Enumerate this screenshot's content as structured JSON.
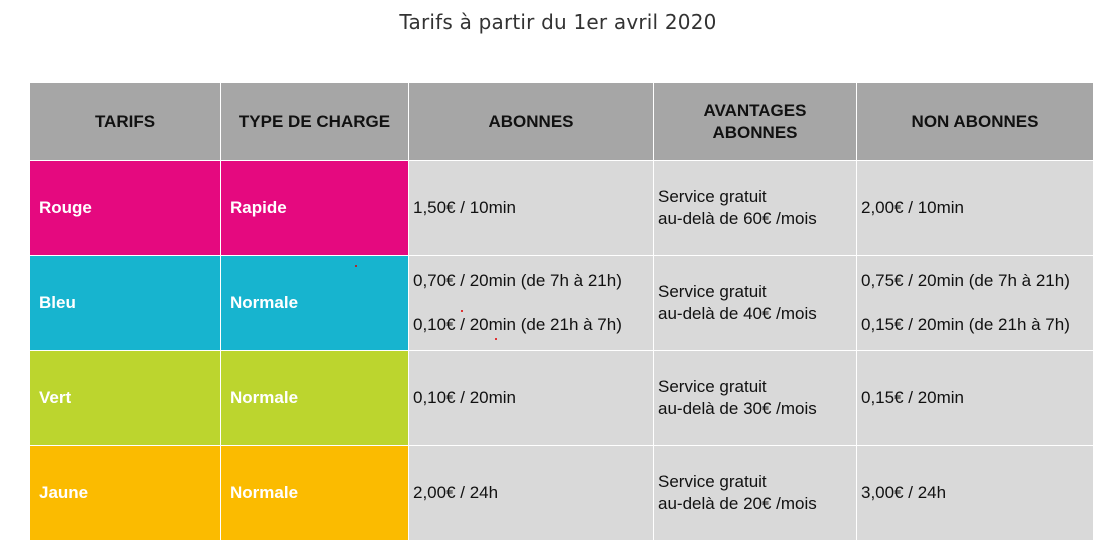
{
  "title": "Tarifs à partir du 1er avril 2020",
  "colors": {
    "header_bg": "#a6a6a6",
    "cell_bg": "#d9d9d9",
    "rouge": "#e5097f",
    "bleu": "#17b4cf",
    "vert": "#bcd52e",
    "jaune": "#fbbb00"
  },
  "headers": {
    "tarifs": "TARIFS",
    "type_de_charge": "TYPE DE CHARGE",
    "abonnes": "ABONNES",
    "avantages_line1": "AVANTAGES",
    "avantages_line2": "ABONNES",
    "non_abonnes": "NON ABONNES"
  },
  "rows": [
    {
      "tarif": "Rouge",
      "type": "Rapide",
      "abonnes": [
        "1,50€ / 10min"
      ],
      "avantages": [
        "Service gratuit",
        "au-delà de 60€ /mois"
      ],
      "non_abonnes": [
        "2,00€ / 10min"
      ]
    },
    {
      "tarif": "Bleu",
      "type": "Normale",
      "abonnes": [
        "0,70€ / 20min (de 7h à 21h)",
        "0,10€ / 20min (de 21h à 7h)"
      ],
      "avantages": [
        "Service gratuit",
        "au-delà de 40€ /mois"
      ],
      "non_abonnes": [
        "0,75€ / 20min (de 7h à 21h)",
        "0,15€ / 20min (de 21h à 7h)"
      ]
    },
    {
      "tarif": "Vert",
      "type": "Normale",
      "abonnes": [
        "0,10€ / 20min"
      ],
      "avantages": [
        "Service gratuit",
        "au-delà de 30€ /mois"
      ],
      "non_abonnes": [
        "0,15€ / 20min"
      ]
    },
    {
      "tarif": "Jaune",
      "type": "Normale",
      "abonnes": [
        "2,00€ / 24h"
      ],
      "avantages": [
        "Service gratuit",
        "au-delà de 20€ /mois"
      ],
      "non_abonnes": [
        "3,00€ / 24h"
      ]
    }
  ]
}
